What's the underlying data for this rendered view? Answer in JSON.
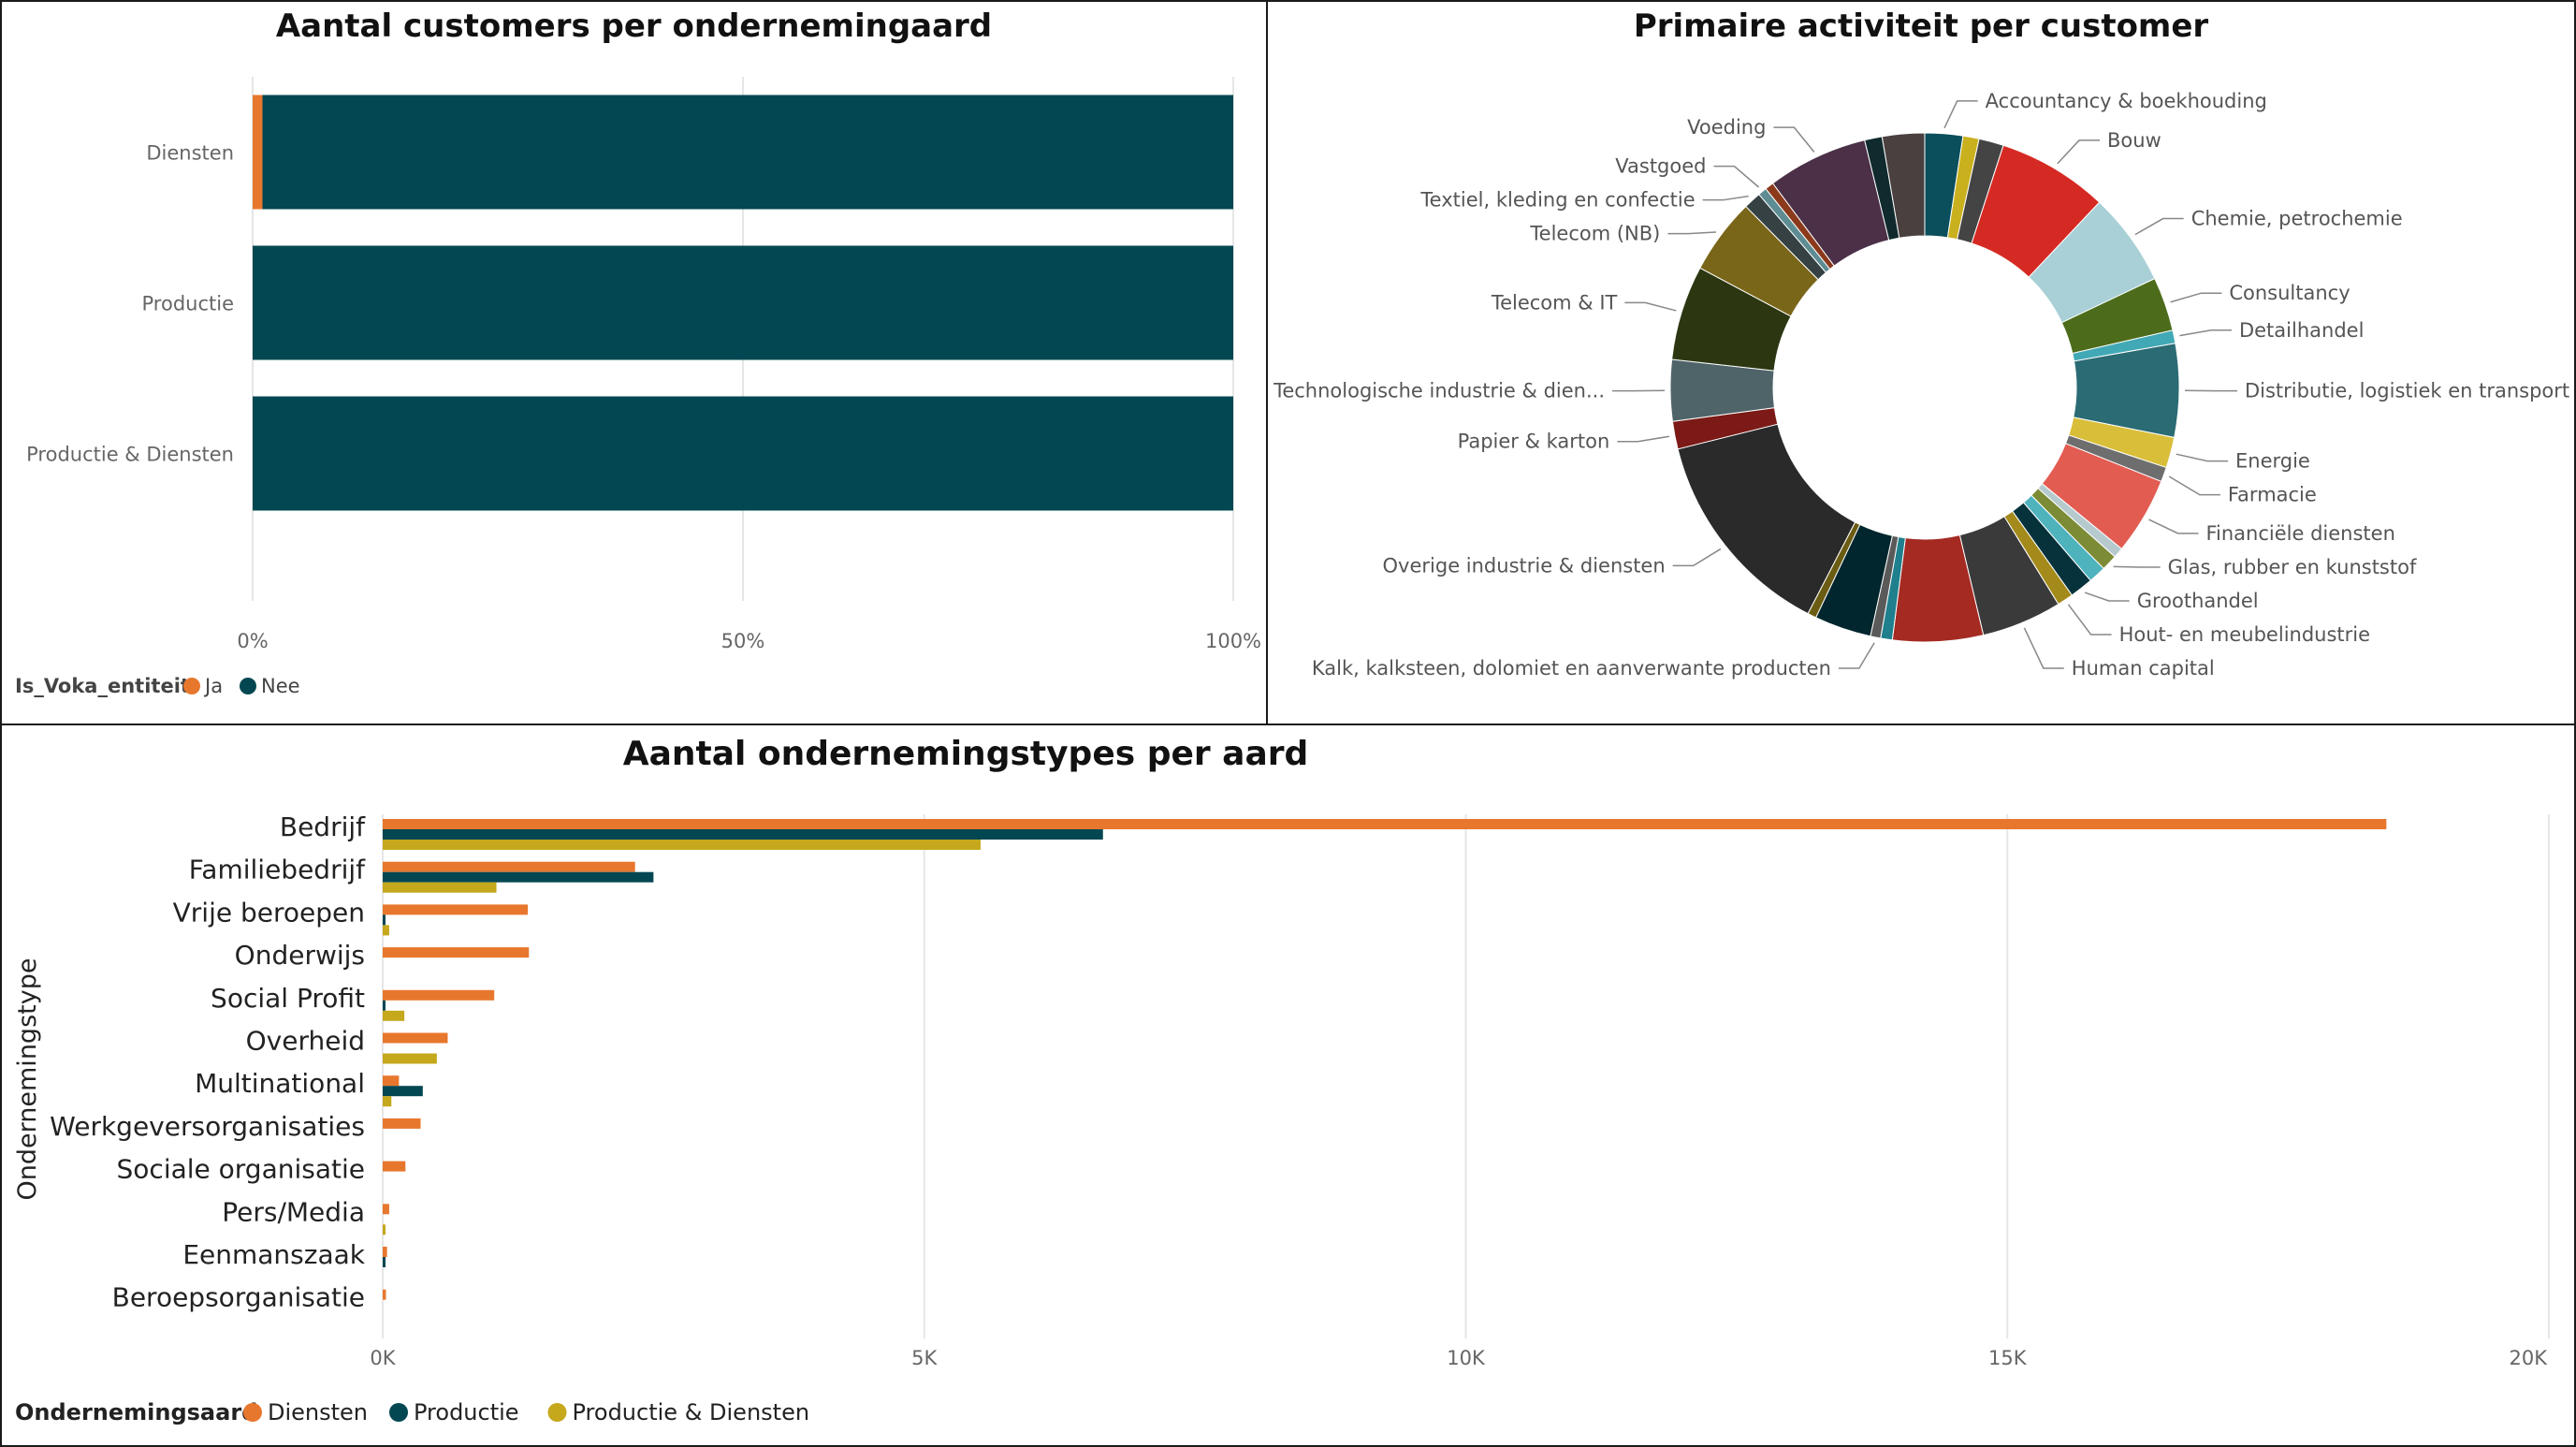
{
  "colors": {
    "orange": "#E8772E",
    "teal": "#034752",
    "gold": "#C5A81C",
    "grid": "#e6e6e6",
    "axis_text": "#666666"
  },
  "panel1": {
    "title": "Aantal customers per ondernemingaard",
    "legend_title": "Is_Voka_entiteit",
    "legend_items": [
      {
        "label": "Ja",
        "color": "#E8772E"
      },
      {
        "label": "Nee",
        "color": "#034752"
      }
    ]
  },
  "panel2": {
    "title": "Primaire activiteit per customer"
  },
  "panel3": {
    "title": "Aantal ondernemingstypes per aard",
    "y_axis_title": "Ondernemingstype",
    "legend_title": "Ondernemingsaard",
    "legend_items": [
      {
        "label": "Diensten",
        "color": "#E8772E"
      },
      {
        "label": "Productie",
        "color": "#034752"
      },
      {
        "label": "Productie & Diensten",
        "color": "#C5A81C"
      }
    ]
  },
  "chart_data": [
    {
      "type": "bar",
      "orientation": "horizontal",
      "stacked": "100%",
      "title": "Aantal customers per ondernemingaard",
      "categories": [
        "Diensten",
        "Productie",
        "Productie & Diensten"
      ],
      "series": [
        {
          "name": "Ja",
          "color": "#E8772E",
          "values": [
            1,
            0,
            0
          ]
        },
        {
          "name": "Nee",
          "color": "#034752",
          "values": [
            99,
            100,
            100
          ]
        }
      ],
      "xticks": [
        "0%",
        "50%",
        "100%"
      ],
      "xlim": [
        0,
        100
      ],
      "grid": true,
      "legend_position": "bottom-left"
    },
    {
      "type": "pie",
      "donut": true,
      "title": "Primaire activiteit per customer",
      "slices": [
        {
          "label": "Accountancy & boekhouding",
          "value": 2.6,
          "color": "#0B4F5C",
          "show_label": true
        },
        {
          "label": "",
          "value": 1.1,
          "color": "#C9B01E",
          "show_label": false
        },
        {
          "label": "",
          "value": 1.7,
          "color": "#444444",
          "show_label": false
        },
        {
          "label": "Bouw",
          "value": 7.6,
          "color": "#D52A23",
          "show_label": true
        },
        {
          "label": "Chemie, petrochemie",
          "value": 6.4,
          "color": "#A8D0D6",
          "show_label": true
        },
        {
          "label": "Consultancy",
          "value": 3.7,
          "color": "#4D6C1B",
          "show_label": true
        },
        {
          "label": "Detailhandel",
          "value": 0.9,
          "color": "#41A9B5",
          "show_label": true
        },
        {
          "label": "Distributie, logistiek en transport",
          "value": 6.4,
          "color": "#2B6B74",
          "show_label": true
        },
        {
          "label": "Energie",
          "value": 2.1,
          "color": "#D9BE3A",
          "show_label": true
        },
        {
          "label": "Farmacie",
          "value": 1.0,
          "color": "#6E6E6E",
          "show_label": true
        },
        {
          "label": "Financiële diensten",
          "value": 5.3,
          "color": "#E25C52",
          "show_label": true
        },
        {
          "label": "",
          "value": 0.7,
          "color": "#B6CACE",
          "show_label": false
        },
        {
          "label": "Glas, rubber en kunststof",
          "value": 1.1,
          "color": "#7C8B35",
          "show_label": true
        },
        {
          "label": "",
          "value": 1.2,
          "color": "#4FB3BE",
          "show_label": false
        },
        {
          "label": "Groothandel",
          "value": 1.6,
          "color": "#06323B",
          "show_label": true
        },
        {
          "label": "Hout- en meubelindustrie",
          "value": 1.1,
          "color": "#A38A1B",
          "show_label": true
        },
        {
          "label": "Human capital",
          "value": 5.5,
          "color": "#3A3A3A",
          "show_label": true
        },
        {
          "label": "",
          "value": 6.2,
          "color": "#A42A22",
          "show_label": false
        },
        {
          "label": "",
          "value": 0.8,
          "color": "#1F7F8C",
          "show_label": false
        },
        {
          "label": "Kalk, kalksteen, dolomiet en aanverwante producten",
          "value": 0.7,
          "color": "#5A5A5A",
          "show_label": true
        },
        {
          "label": "",
          "value": 3.9,
          "color": "#01262E",
          "show_label": false
        },
        {
          "label": "",
          "value": 0.6,
          "color": "#6B5C13",
          "show_label": false
        },
        {
          "label": "Overige industrie & diensten",
          "value": 14.6,
          "color": "#2A2A2A",
          "show_label": true
        },
        {
          "label": "Papier & karton",
          "value": 1.9,
          "color": "#7B1A16",
          "show_label": true
        },
        {
          "label": "Technologische industrie & dien...",
          "value": 4.2,
          "color": "#4F6468",
          "show_label": true
        },
        {
          "label": "Telecom & IT",
          "value": 6.5,
          "color": "#2C3712",
          "show_label": true
        },
        {
          "label": "Telecom (NB)",
          "value": 5.2,
          "color": "#7A6619",
          "show_label": true
        },
        {
          "label": "Textiel, kleding en confectie",
          "value": 1.2,
          "color": "#354143",
          "show_label": true
        },
        {
          "label": "Vastgoed",
          "value": 0.6,
          "color": "#5E8C93",
          "show_label": true
        },
        {
          "label": "",
          "value": 0.6,
          "color": "#8B3A1C",
          "show_label": false
        },
        {
          "label": "Voeding",
          "value": 6.9,
          "color": "#4B3048",
          "show_label": true
        },
        {
          "label": "",
          "value": 1.2,
          "color": "#102A2D",
          "show_label": false
        },
        {
          "label": "",
          "value": 2.9,
          "color": "#4A4040",
          "show_label": false
        }
      ]
    },
    {
      "type": "bar",
      "orientation": "horizontal",
      "title": "Aantal ondernemingstypes per aard",
      "ylabel": "Ondernemingstype",
      "categories": [
        "Bedrijf",
        "Familiebedrijf",
        "Vrije beroepen",
        "Onderwijs",
        "Social Profit",
        "Overheid",
        "Multinational",
        "Werkgeversorganisaties",
        "Sociale organisatie",
        "Pers/Media",
        "Eenmanszaak",
        "Beroepsorganisatie"
      ],
      "series": [
        {
          "name": "Diensten",
          "color": "#E8772E",
          "values": [
            18500,
            2330,
            1340,
            1350,
            1030,
            600,
            150,
            350,
            210,
            60,
            40,
            30
          ]
        },
        {
          "name": "Productie",
          "color": "#034752",
          "values": [
            6650,
            2500,
            20,
            0,
            20,
            0,
            370,
            0,
            0,
            0,
            20,
            0
          ]
        },
        {
          "name": "Productie & Diensten",
          "color": "#C5A81C",
          "values": [
            5520,
            1050,
            60,
            0,
            200,
            500,
            80,
            0,
            0,
            20,
            0,
            0
          ]
        }
      ],
      "xticks": [
        "0K",
        "5K",
        "10K",
        "15K",
        "20K"
      ],
      "xlim": [
        0,
        20000
      ],
      "grid": true,
      "legend_position": "bottom-left"
    }
  ]
}
